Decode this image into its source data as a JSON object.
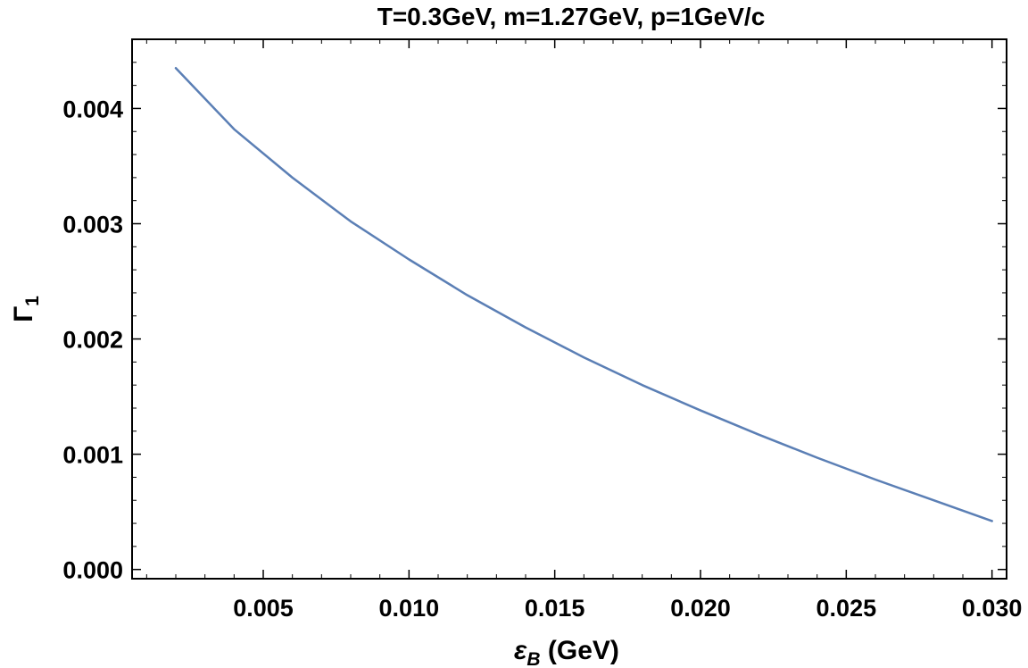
{
  "chart_data": {
    "type": "line",
    "title": "T=0.3GeV, m=1.27GeV, p=1GeV/c",
    "xlabel": {
      "symbol": "ε",
      "subscript": "B",
      "unit": " (GeV)"
    },
    "ylabel": {
      "symbol": "Γ",
      "subscript": "1"
    },
    "xlim": [
      0.0005,
      0.0305
    ],
    "ylim": [
      -8e-05,
      0.0046
    ],
    "x_ticks": [
      0.005,
      0.01,
      0.015,
      0.02,
      0.025,
      0.03
    ],
    "x_tick_labels": [
      "0.005",
      "0.010",
      "0.015",
      "0.020",
      "0.025",
      "0.030"
    ],
    "y_ticks": [
      0.0,
      0.001,
      0.002,
      0.003,
      0.004
    ],
    "y_tick_labels": [
      "0.000",
      "0.001",
      "0.002",
      "0.003",
      "0.004"
    ],
    "x_minor_step": 0.001,
    "y_minor_step": 0.0002,
    "grid": false,
    "line_color": "#5b7fb5",
    "series": [
      {
        "x": [
          0.002,
          0.004,
          0.006,
          0.008,
          0.01,
          0.012,
          0.014,
          0.016,
          0.018,
          0.02,
          0.022,
          0.024,
          0.026,
          0.028,
          0.03
        ],
        "values": [
          0.00435,
          0.00382,
          0.0034,
          0.00302,
          0.00269,
          0.00238,
          0.0021,
          0.00184,
          0.0016,
          0.00138,
          0.00117,
          0.00097,
          0.00078,
          0.0006,
          0.00042
        ]
      }
    ]
  }
}
